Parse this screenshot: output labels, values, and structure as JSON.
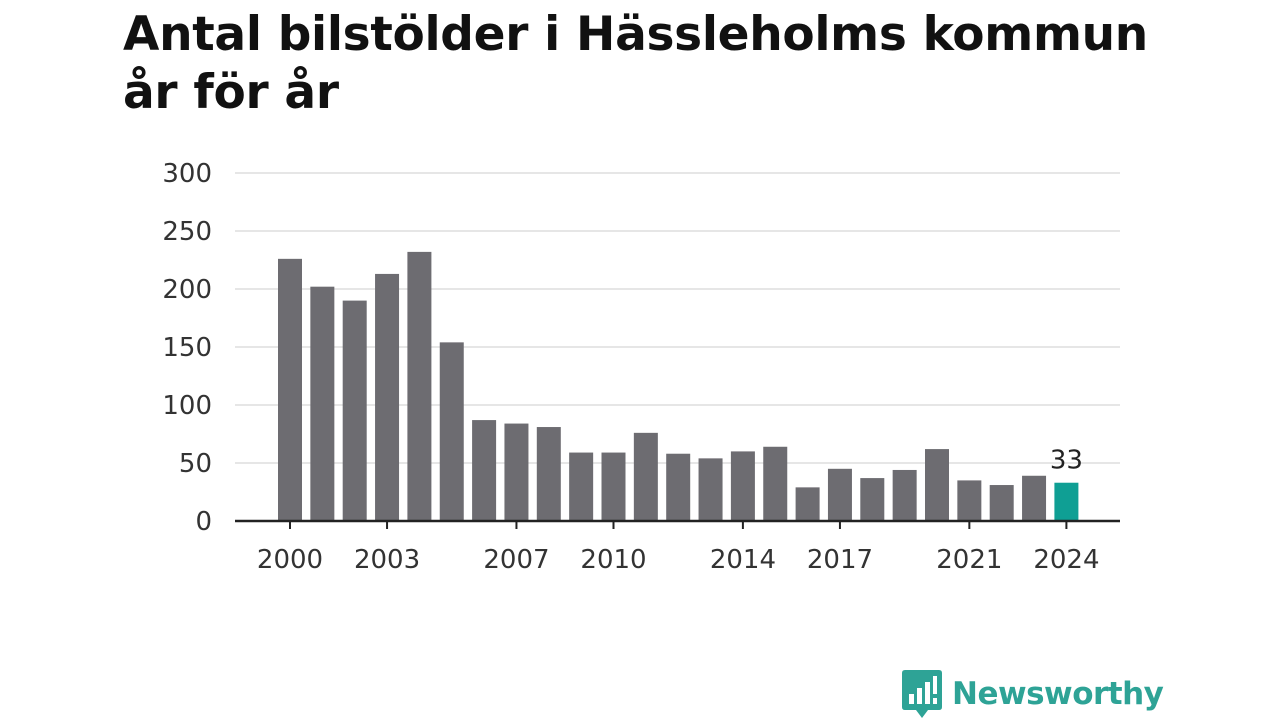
{
  "title": "Antal bilstölder i Hässleholms kommun år för år",
  "brand": {
    "name": "Newsworthy",
    "color": "#2ea396",
    "logo_icon": "bar-chart-speech-bubble-icon"
  },
  "colors": {
    "bar": "#6d6c71",
    "highlight": "#0f9f94",
    "grid": "#dddddd",
    "axis": "#222222"
  },
  "chart_data": {
    "type": "bar",
    "title": "Antal bilstölder i Hässleholms kommun år för år",
    "xlabel": "",
    "ylabel": "",
    "categories": [
      2000,
      2001,
      2002,
      2003,
      2004,
      2005,
      2006,
      2007,
      2008,
      2009,
      2010,
      2011,
      2012,
      2013,
      2014,
      2015,
      2016,
      2017,
      2018,
      2019,
      2020,
      2021,
      2022,
      2023,
      2024
    ],
    "values": [
      226,
      202,
      190,
      213,
      232,
      154,
      87,
      84,
      81,
      59,
      59,
      76,
      58,
      54,
      60,
      64,
      29,
      45,
      37,
      44,
      62,
      35,
      31,
      39,
      33
    ],
    "ylim": [
      0,
      300
    ],
    "y_ticks": [
      0,
      50,
      100,
      150,
      200,
      250,
      300
    ],
    "x_tick_labels": [
      "2000",
      "2003",
      "2007",
      "2010",
      "2014",
      "2017",
      "2021",
      "2024"
    ],
    "highlight_category": 2024,
    "data_labels": [
      {
        "category": 2024,
        "text": "33"
      }
    ],
    "grid": true,
    "legend": "none"
  }
}
